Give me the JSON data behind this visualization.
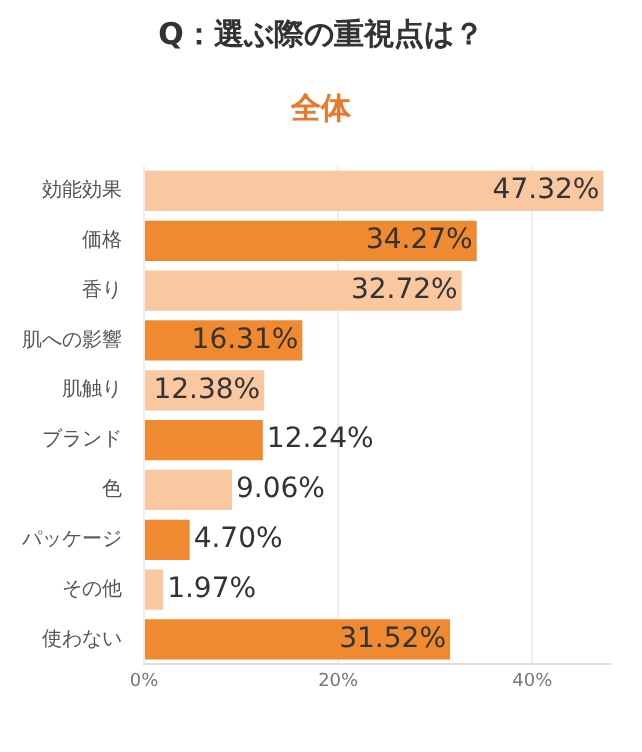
{
  "chart_data": {
    "type": "bar",
    "orientation": "horizontal",
    "title": "Q：選ぶ際の重視点は？",
    "subtitle": "全体",
    "categories": [
      "効能効果",
      "価格",
      "香り",
      "肌への影響",
      "肌触り",
      "ブランド",
      "色",
      "パッケージ",
      "その他",
      "使わない"
    ],
    "values": [
      47.32,
      34.27,
      32.72,
      16.31,
      12.38,
      12.24,
      9.06,
      4.7,
      1.97,
      31.52
    ],
    "value_labels": [
      "47.32%",
      "34.27%",
      "32.72%",
      "16.31%",
      "12.38%",
      "12.24%",
      "9.06%",
      "4.70%",
      "1.97%",
      "31.52%"
    ],
    "colors": [
      "#f9c8a0",
      "#f08a30",
      "#f9c8a0",
      "#f08a30",
      "#f9c8a0",
      "#f08a30",
      "#f9c8a0",
      "#f08a30",
      "#f9c8a0",
      "#f08a30"
    ],
    "xlim": [
      0,
      48
    ],
    "xticks": [
      {
        "value": 0,
        "label": "0%"
      },
      {
        "value": 20,
        "label": "20%"
      },
      {
        "value": 40,
        "label": "40%"
      }
    ],
    "grid": "x"
  }
}
